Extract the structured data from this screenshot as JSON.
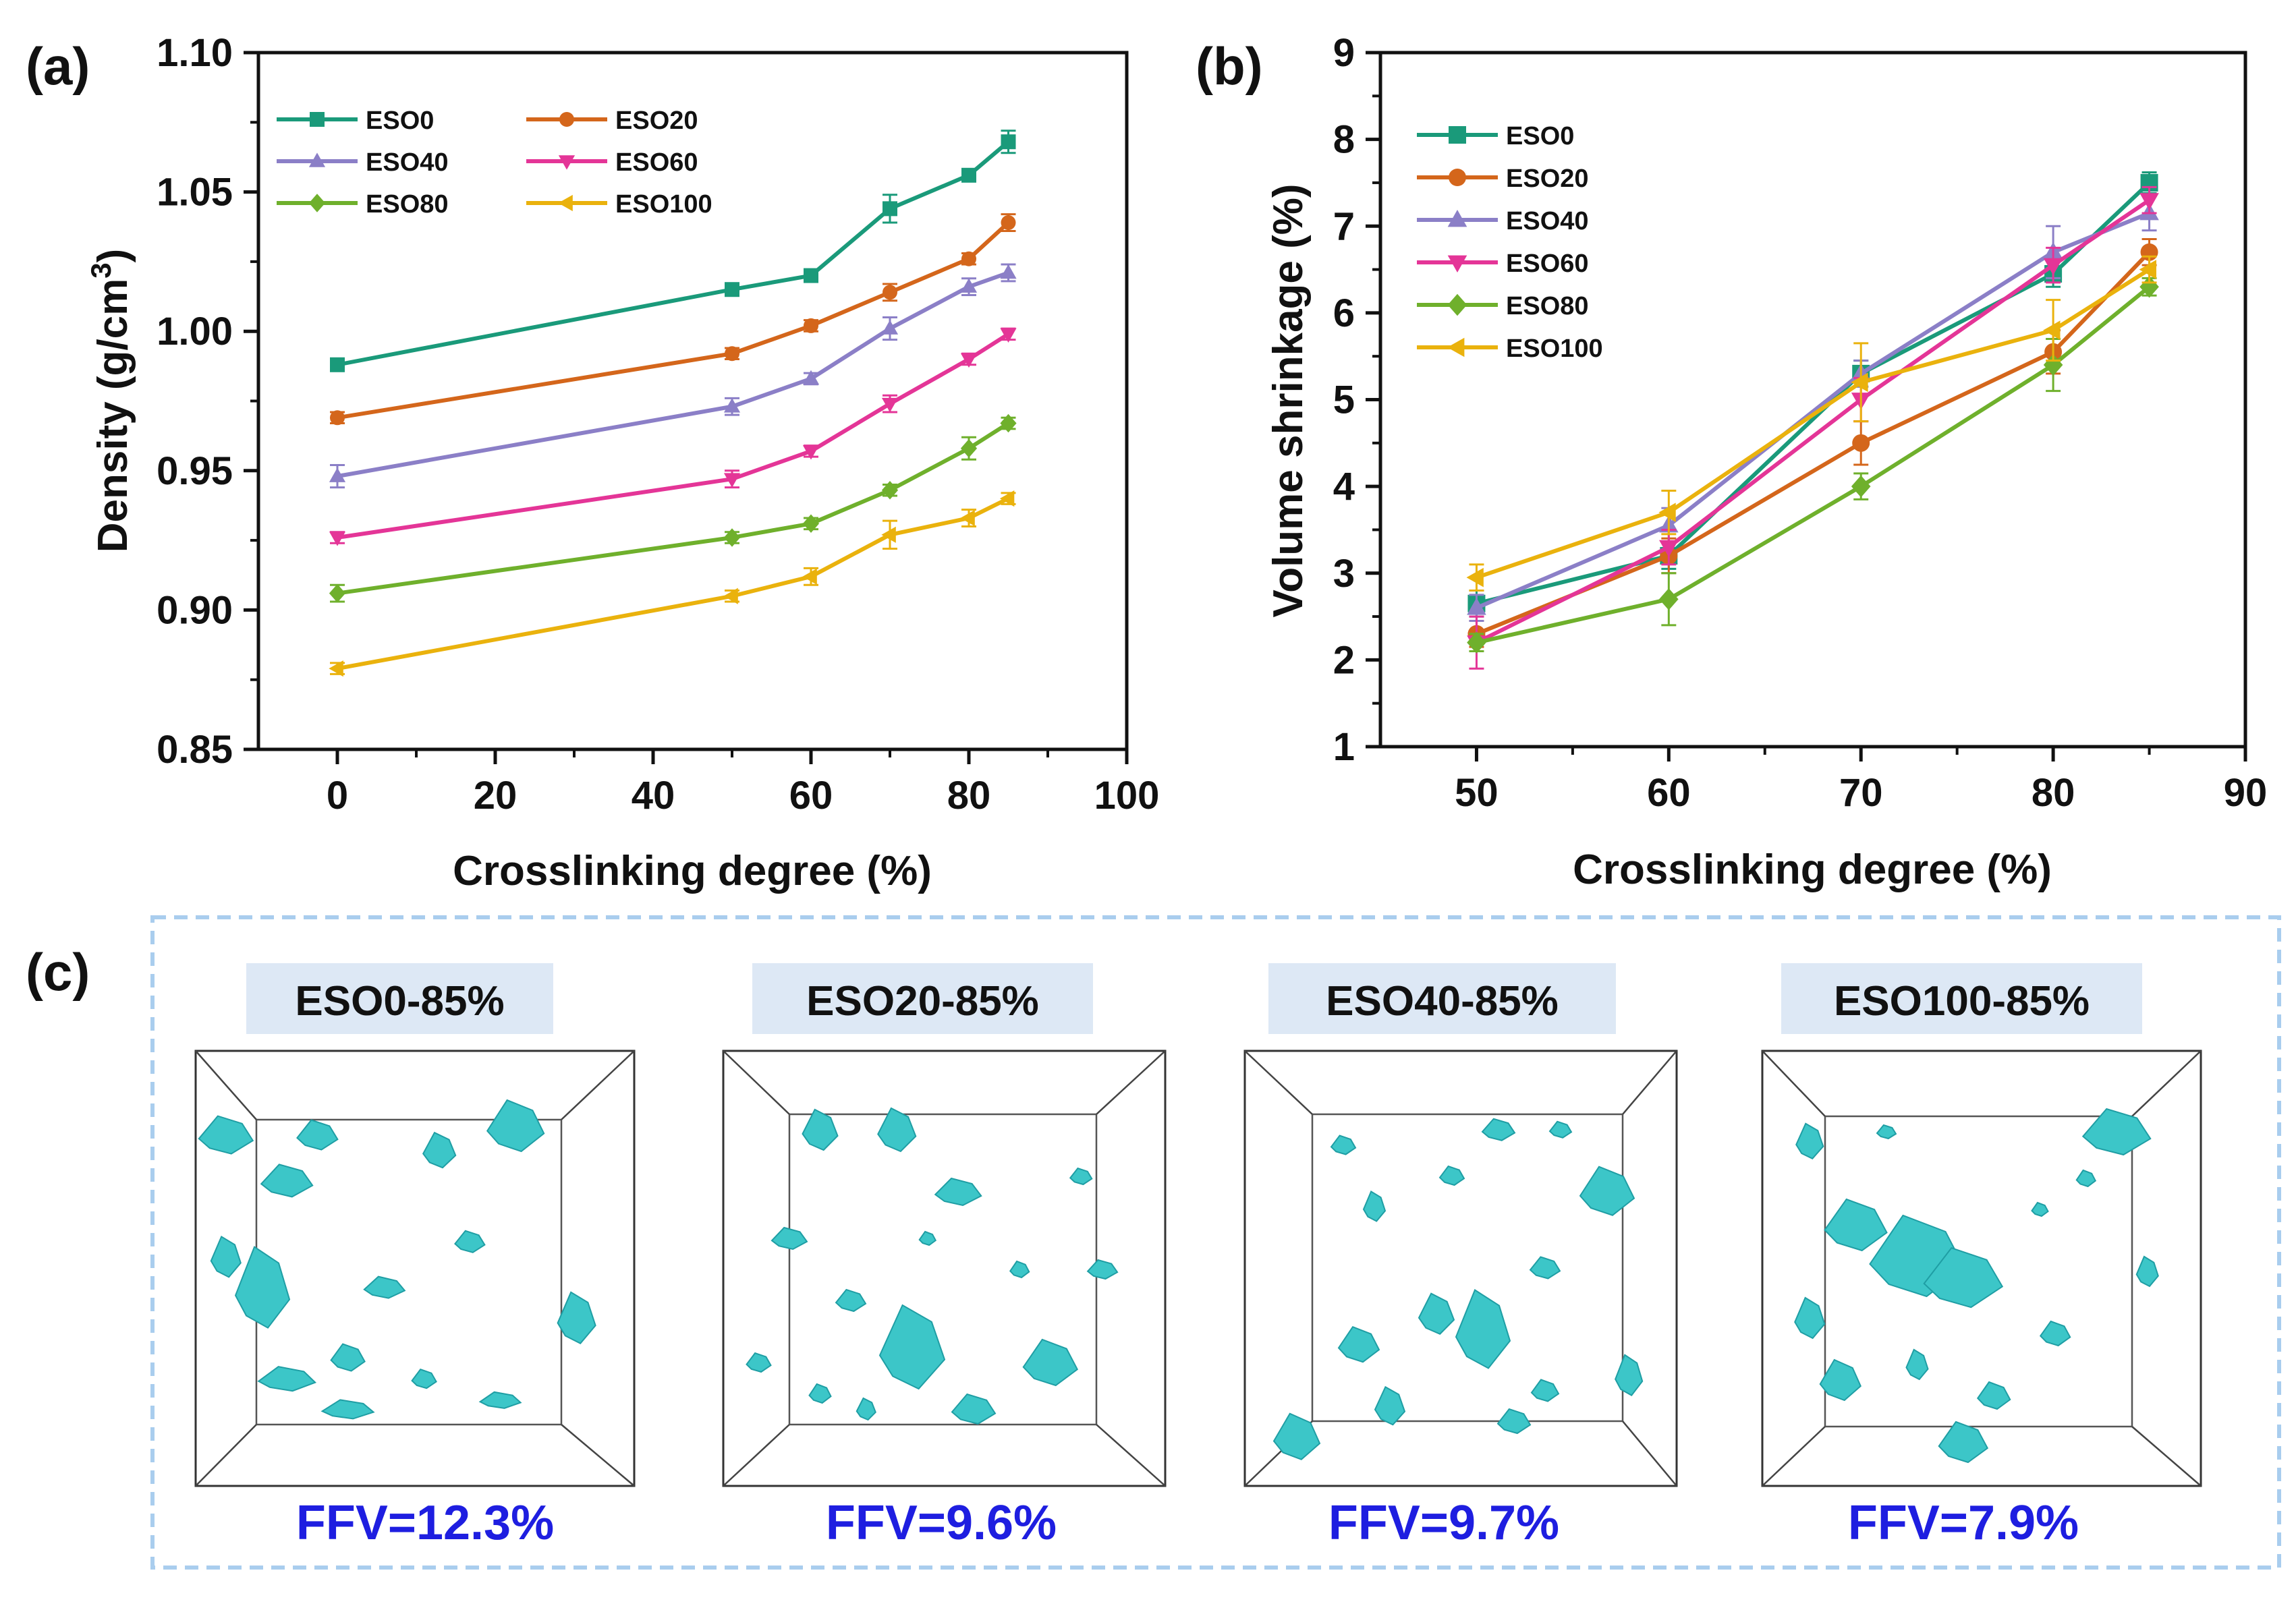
{
  "chart_data": [
    {
      "panel": "(a)",
      "type": "line",
      "xlabel": "Crosslinking degree (%)",
      "ylabel": "Density (g/cm",
      "ylabel_sup": "3",
      "ylabel_end": ")",
      "xlim": [
        -10,
        100
      ],
      "ylim": [
        0.85,
        1.1
      ],
      "xticks": [
        "0",
        "20",
        "40",
        "60",
        "80",
        "100"
      ],
      "xtick_values": [
        0,
        20,
        40,
        60,
        80,
        100
      ],
      "yticks": [
        "0.85",
        "0.90",
        "0.95",
        "1.00",
        "1.05",
        "1.10"
      ],
      "ytick_values": [
        0.85,
        0.9,
        0.95,
        1.0,
        1.05,
        1.1
      ],
      "x": [
        0,
        50,
        60,
        70,
        80,
        85
      ],
      "legend_position": "top-left",
      "series": [
        {
          "name": "ESO0",
          "color": "#1a9a7a",
          "marker": "square",
          "values": [
            0.988,
            1.015,
            1.02,
            1.044,
            1.056,
            1.068
          ],
          "errors": [
            0.002,
            0.002,
            0.002,
            0.005,
            0.002,
            0.004
          ]
        },
        {
          "name": "ESO20",
          "color": "#d4661b",
          "marker": "circle",
          "values": [
            0.969,
            0.992,
            1.002,
            1.014,
            1.026,
            1.039
          ],
          "errors": [
            0.002,
            0.002,
            0.002,
            0.003,
            0.002,
            0.003
          ]
        },
        {
          "name": "ESO40",
          "color": "#8b7fc7",
          "marker": "triangle",
          "values": [
            0.948,
            0.973,
            0.983,
            1.001,
            1.016,
            1.021
          ],
          "errors": [
            0.004,
            0.003,
            0.002,
            0.004,
            0.003,
            0.003
          ]
        },
        {
          "name": "ESO60",
          "color": "#e43597",
          "marker": "triangle-down",
          "values": [
            0.926,
            0.947,
            0.957,
            0.974,
            0.99,
            0.999
          ],
          "errors": [
            0.002,
            0.003,
            0.002,
            0.003,
            0.002,
            0.002
          ]
        },
        {
          "name": "ESO80",
          "color": "#6fb02c",
          "marker": "diamond",
          "values": [
            0.906,
            0.926,
            0.931,
            0.943,
            0.958,
            0.967
          ],
          "errors": [
            0.003,
            0.002,
            0.002,
            0.002,
            0.004,
            0.002
          ]
        },
        {
          "name": "ESO100",
          "color": "#eab20d",
          "marker": "triangle-left",
          "values": [
            0.879,
            0.905,
            0.912,
            0.927,
            0.933,
            0.94
          ],
          "errors": [
            0.002,
            0.002,
            0.003,
            0.005,
            0.003,
            0.002
          ]
        }
      ]
    },
    {
      "panel": "(b)",
      "type": "line",
      "xlabel": "Crosslinking degree (%)",
      "ylabel": "Volume shrinkage (%)",
      "xlim": [
        45,
        90
      ],
      "ylim": [
        1,
        9
      ],
      "xticks": [
        "50",
        "60",
        "70",
        "80",
        "90"
      ],
      "xtick_values": [
        50,
        60,
        70,
        80,
        90
      ],
      "yticks": [
        "1",
        "2",
        "3",
        "4",
        "5",
        "6",
        "7",
        "8",
        "9"
      ],
      "ytick_values": [
        1,
        2,
        3,
        4,
        5,
        6,
        7,
        8,
        9
      ],
      "x": [
        50,
        60,
        70,
        80,
        85
      ],
      "legend_position": "top-left",
      "series": [
        {
          "name": "ESO0",
          "color": "#1a9a7a",
          "marker": "square",
          "values": [
            2.65,
            3.2,
            5.3,
            6.45,
            7.5
          ],
          "errors": [
            0.15,
            0.15,
            0.15,
            0.15,
            0.12
          ]
        },
        {
          "name": "ESO20",
          "color": "#d4661b",
          "marker": "circle",
          "values": [
            2.3,
            3.2,
            4.5,
            5.55,
            6.7
          ],
          "errors": [
            0.15,
            0.2,
            0.25,
            0.25,
            0.15
          ]
        },
        {
          "name": "ESO40",
          "color": "#8b7fc7",
          "marker": "triangle",
          "values": [
            2.6,
            3.55,
            5.3,
            6.7,
            7.15
          ],
          "errors": [
            0.15,
            0.2,
            0.15,
            0.3,
            0.2
          ]
        },
        {
          "name": "ESO60",
          "color": "#e43597",
          "marker": "triangle-down",
          "values": [
            2.2,
            3.3,
            5.0,
            6.55,
            7.3
          ],
          "errors": [
            0.3,
            0.2,
            0.25,
            0.2,
            0.15
          ]
        },
        {
          "name": "ESO80",
          "color": "#6fb02c",
          "marker": "diamond",
          "values": [
            2.2,
            2.7,
            4.0,
            5.4,
            6.3
          ],
          "errors": [
            0.1,
            0.3,
            0.15,
            0.3,
            0.1
          ]
        },
        {
          "name": "ESO100",
          "color": "#eab20d",
          "marker": "triangle-left",
          "values": [
            2.95,
            3.7,
            5.2,
            5.8,
            6.5
          ],
          "errors": [
            0.15,
            0.25,
            0.45,
            0.35,
            0.15
          ]
        }
      ]
    }
  ],
  "panel_c": {
    "label": "(c)",
    "boxes": [
      {
        "title": "ESO0-85%",
        "ffv": "FFV=12.3%"
      },
      {
        "title": "ESO20-85%",
        "ffv": "FFV=9.6%"
      },
      {
        "title": "ESO40-85%",
        "ffv": "FFV=9.7%"
      },
      {
        "title": "ESO100-85%",
        "ffv": "FFV=7.9%"
      }
    ]
  },
  "colors": {
    "void": "#3cc6c8",
    "void_edge": "#1f9ea4",
    "ffv_text": "#1e1ee0",
    "title_bg": "#dde8f5",
    "frame_dash": "#a9cdee"
  }
}
